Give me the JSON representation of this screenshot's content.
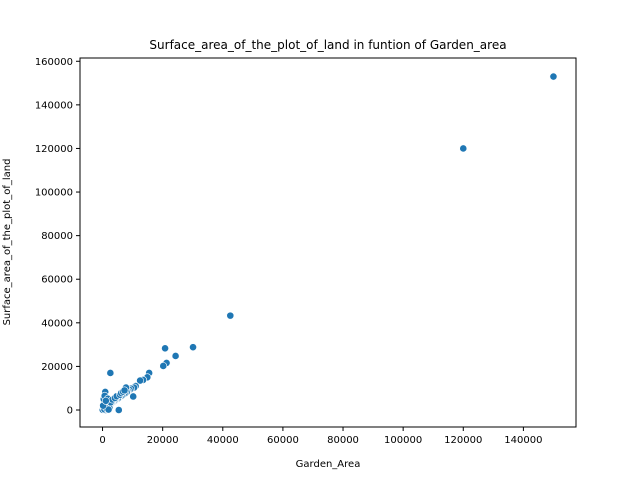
{
  "chart_data": {
    "type": "scatter",
    "title": "Surface_area_of_the_plot_of_land in funtion of Garden_area",
    "xlabel": "Garden_Area",
    "ylabel": "Surface_area_of_the_plot_of_land",
    "xlim": [
      -7500,
      157500
    ],
    "ylim": [
      -7800,
      161500
    ],
    "xticks": [
      0,
      20000,
      40000,
      60000,
      80000,
      100000,
      120000,
      140000
    ],
    "xtick_labels": [
      "0",
      "20000",
      "40000",
      "60000",
      "80000",
      "100000",
      "120000",
      "140000"
    ],
    "yticks": [
      0,
      20000,
      40000,
      60000,
      80000,
      100000,
      120000,
      140000,
      160000
    ],
    "ytick_labels": [
      "0",
      "20000",
      "40000",
      "60000",
      "80000",
      "100000",
      "120000",
      "140000",
      "160000"
    ],
    "grid": false,
    "marker_color": "#1f77b4",
    "series": [
      {
        "points": [
          [
            150000,
            153000
          ],
          [
            120000,
            120000
          ],
          [
            42500,
            43300
          ],
          [
            30100,
            28800
          ],
          [
            24300,
            24800
          ],
          [
            21300,
            21600
          ],
          [
            20800,
            28300
          ],
          [
            20200,
            20200
          ],
          [
            15500,
            17000
          ],
          [
            14900,
            15000
          ],
          [
            13500,
            13800
          ],
          [
            12500,
            13500
          ],
          [
            11000,
            11000
          ],
          [
            10500,
            10300
          ],
          [
            10200,
            6200
          ],
          [
            9500,
            9800
          ],
          [
            9000,
            9200
          ],
          [
            8500,
            8700
          ],
          [
            8200,
            8400
          ],
          [
            8000,
            8100
          ],
          [
            7800,
            10300
          ],
          [
            7500,
            7600
          ],
          [
            7000,
            7200
          ],
          [
            6500,
            6700
          ],
          [
            6000,
            6200
          ],
          [
            5500,
            5700
          ],
          [
            5200,
            5400
          ],
          [
            5000,
            5100
          ],
          [
            5400,
            0
          ],
          [
            4500,
            4700
          ],
          [
            4200,
            4300
          ],
          [
            4000,
            4100
          ],
          [
            3800,
            3900
          ],
          [
            3500,
            3600
          ],
          [
            3200,
            3300
          ],
          [
            3000,
            3100
          ],
          [
            2800,
            2900
          ],
          [
            2500,
            2600
          ],
          [
            2200,
            2300
          ],
          [
            2600,
            17000
          ],
          [
            2000,
            2100
          ],
          [
            1800,
            1900
          ],
          [
            1500,
            1600
          ],
          [
            1200,
            1300
          ],
          [
            1000,
            1100
          ],
          [
            800,
            900
          ],
          [
            500,
            600
          ],
          [
            300,
            400
          ],
          [
            100,
            200
          ],
          [
            50,
            80
          ],
          [
            600,
            3300
          ],
          [
            900,
            8300
          ],
          [
            400,
            5000
          ],
          [
            700,
            6500
          ],
          [
            1200,
            2800
          ],
          [
            1600,
            3800
          ],
          [
            2100,
            4600
          ],
          [
            800,
            2400
          ],
          [
            300,
            1200
          ],
          [
            1500,
            500
          ],
          [
            2300,
            1000
          ],
          [
            1000,
            0
          ],
          [
            600,
            300
          ],
          [
            1800,
            5200
          ],
          [
            2700,
            3500
          ],
          [
            3300,
            4800
          ],
          [
            4100,
            5500
          ],
          [
            4700,
            6300
          ],
          [
            5800,
            7000
          ],
          [
            6200,
            7800
          ],
          [
            6800,
            8400
          ],
          [
            7300,
            9000
          ],
          [
            1400,
            700
          ],
          [
            2000,
            200
          ],
          [
            200,
            2000
          ],
          [
            1100,
            4200
          ]
        ]
      }
    ]
  }
}
